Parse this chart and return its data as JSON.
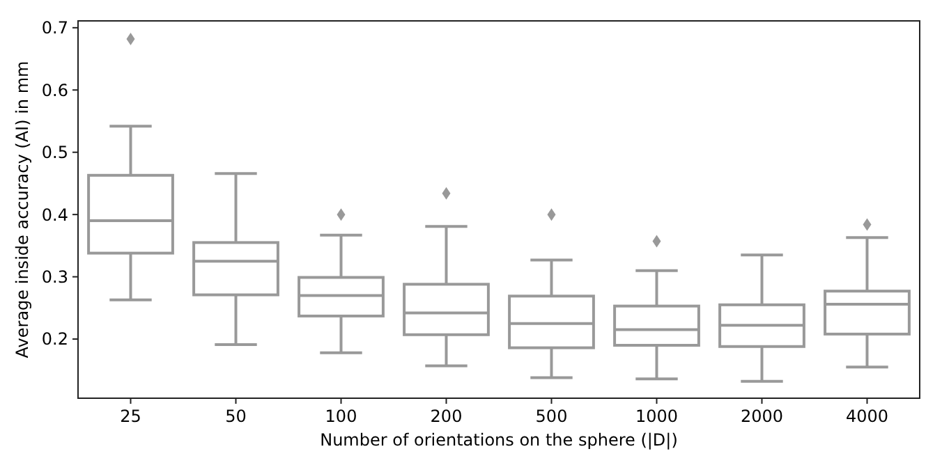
{
  "chart_data": {
    "type": "box",
    "xlabel": "Number of orientations on the sphere (|D|)",
    "ylabel": "Average inside accuracy (AI) in mm",
    "categories": [
      "25",
      "50",
      "100",
      "200",
      "500",
      "1000",
      "2000",
      "4000"
    ],
    "color": "#999999",
    "marker": "diamond",
    "ylim": [
      0.105,
      0.711
    ],
    "yticks": [
      0.2,
      0.3,
      0.4,
      0.5,
      0.6,
      0.7
    ],
    "grid": false,
    "boxes": [
      {
        "low": 0.263,
        "q1": 0.338,
        "median": 0.39,
        "q3": 0.463,
        "high": 0.542,
        "outliers": [
          0.682
        ]
      },
      {
        "low": 0.191,
        "q1": 0.271,
        "median": 0.325,
        "q3": 0.355,
        "high": 0.466
      },
      {
        "low": 0.178,
        "q1": 0.237,
        "median": 0.27,
        "q3": 0.299,
        "high": 0.367,
        "outliers": [
          0.4
        ]
      },
      {
        "low": 0.157,
        "q1": 0.207,
        "median": 0.242,
        "q3": 0.288,
        "high": 0.381,
        "outliers": [
          0.434
        ]
      },
      {
        "low": 0.138,
        "q1": 0.186,
        "median": 0.225,
        "q3": 0.269,
        "high": 0.327,
        "outliers": [
          0.4
        ]
      },
      {
        "low": 0.136,
        "q1": 0.19,
        "median": 0.215,
        "q3": 0.253,
        "high": 0.31,
        "outliers": [
          0.357
        ]
      },
      {
        "low": 0.132,
        "q1": 0.188,
        "median": 0.222,
        "q3": 0.255,
        "high": 0.335
      },
      {
        "low": 0.155,
        "q1": 0.208,
        "median": 0.256,
        "q3": 0.277,
        "high": 0.363,
        "outliers": [
          0.384
        ]
      }
    ]
  }
}
